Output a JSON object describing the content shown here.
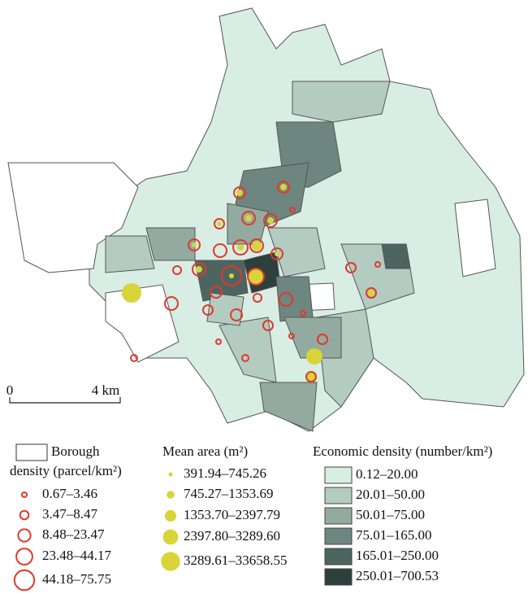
{
  "scale_bar": {
    "start": "0",
    "end": "4 km"
  },
  "legends": {
    "borough": {
      "title_lines": [
        "Borough",
        "density (parcel/km²)"
      ],
      "items": [
        "0.67–3.46",
        "3.47–8.47",
        "8.48–23.47",
        "23.48–44.17",
        "44.18–75.75"
      ]
    },
    "mean_area": {
      "title": "Mean area (m²)",
      "items": [
        "391.94–745.26",
        "745.27–1353.69",
        "1353.70–2397.79",
        "2397.80–3289.60",
        "3289.61–33658.55"
      ]
    },
    "economic_density": {
      "title": "Economic density (number/km²)",
      "items": [
        {
          "label": "0.12–20.00",
          "color": "#d8ede3"
        },
        {
          "label": "20.01–50.00",
          "color": "#b4cbc1"
        },
        {
          "label": "50.01–75.00",
          "color": "#93aaa1"
        },
        {
          "label": "75.01–165.00",
          "color": "#6e8680"
        },
        {
          "label": "165.01–250.00",
          "color": "#4d6560"
        },
        {
          "label": "250.01–700.53",
          "color": "#2e403b"
        }
      ]
    }
  }
}
